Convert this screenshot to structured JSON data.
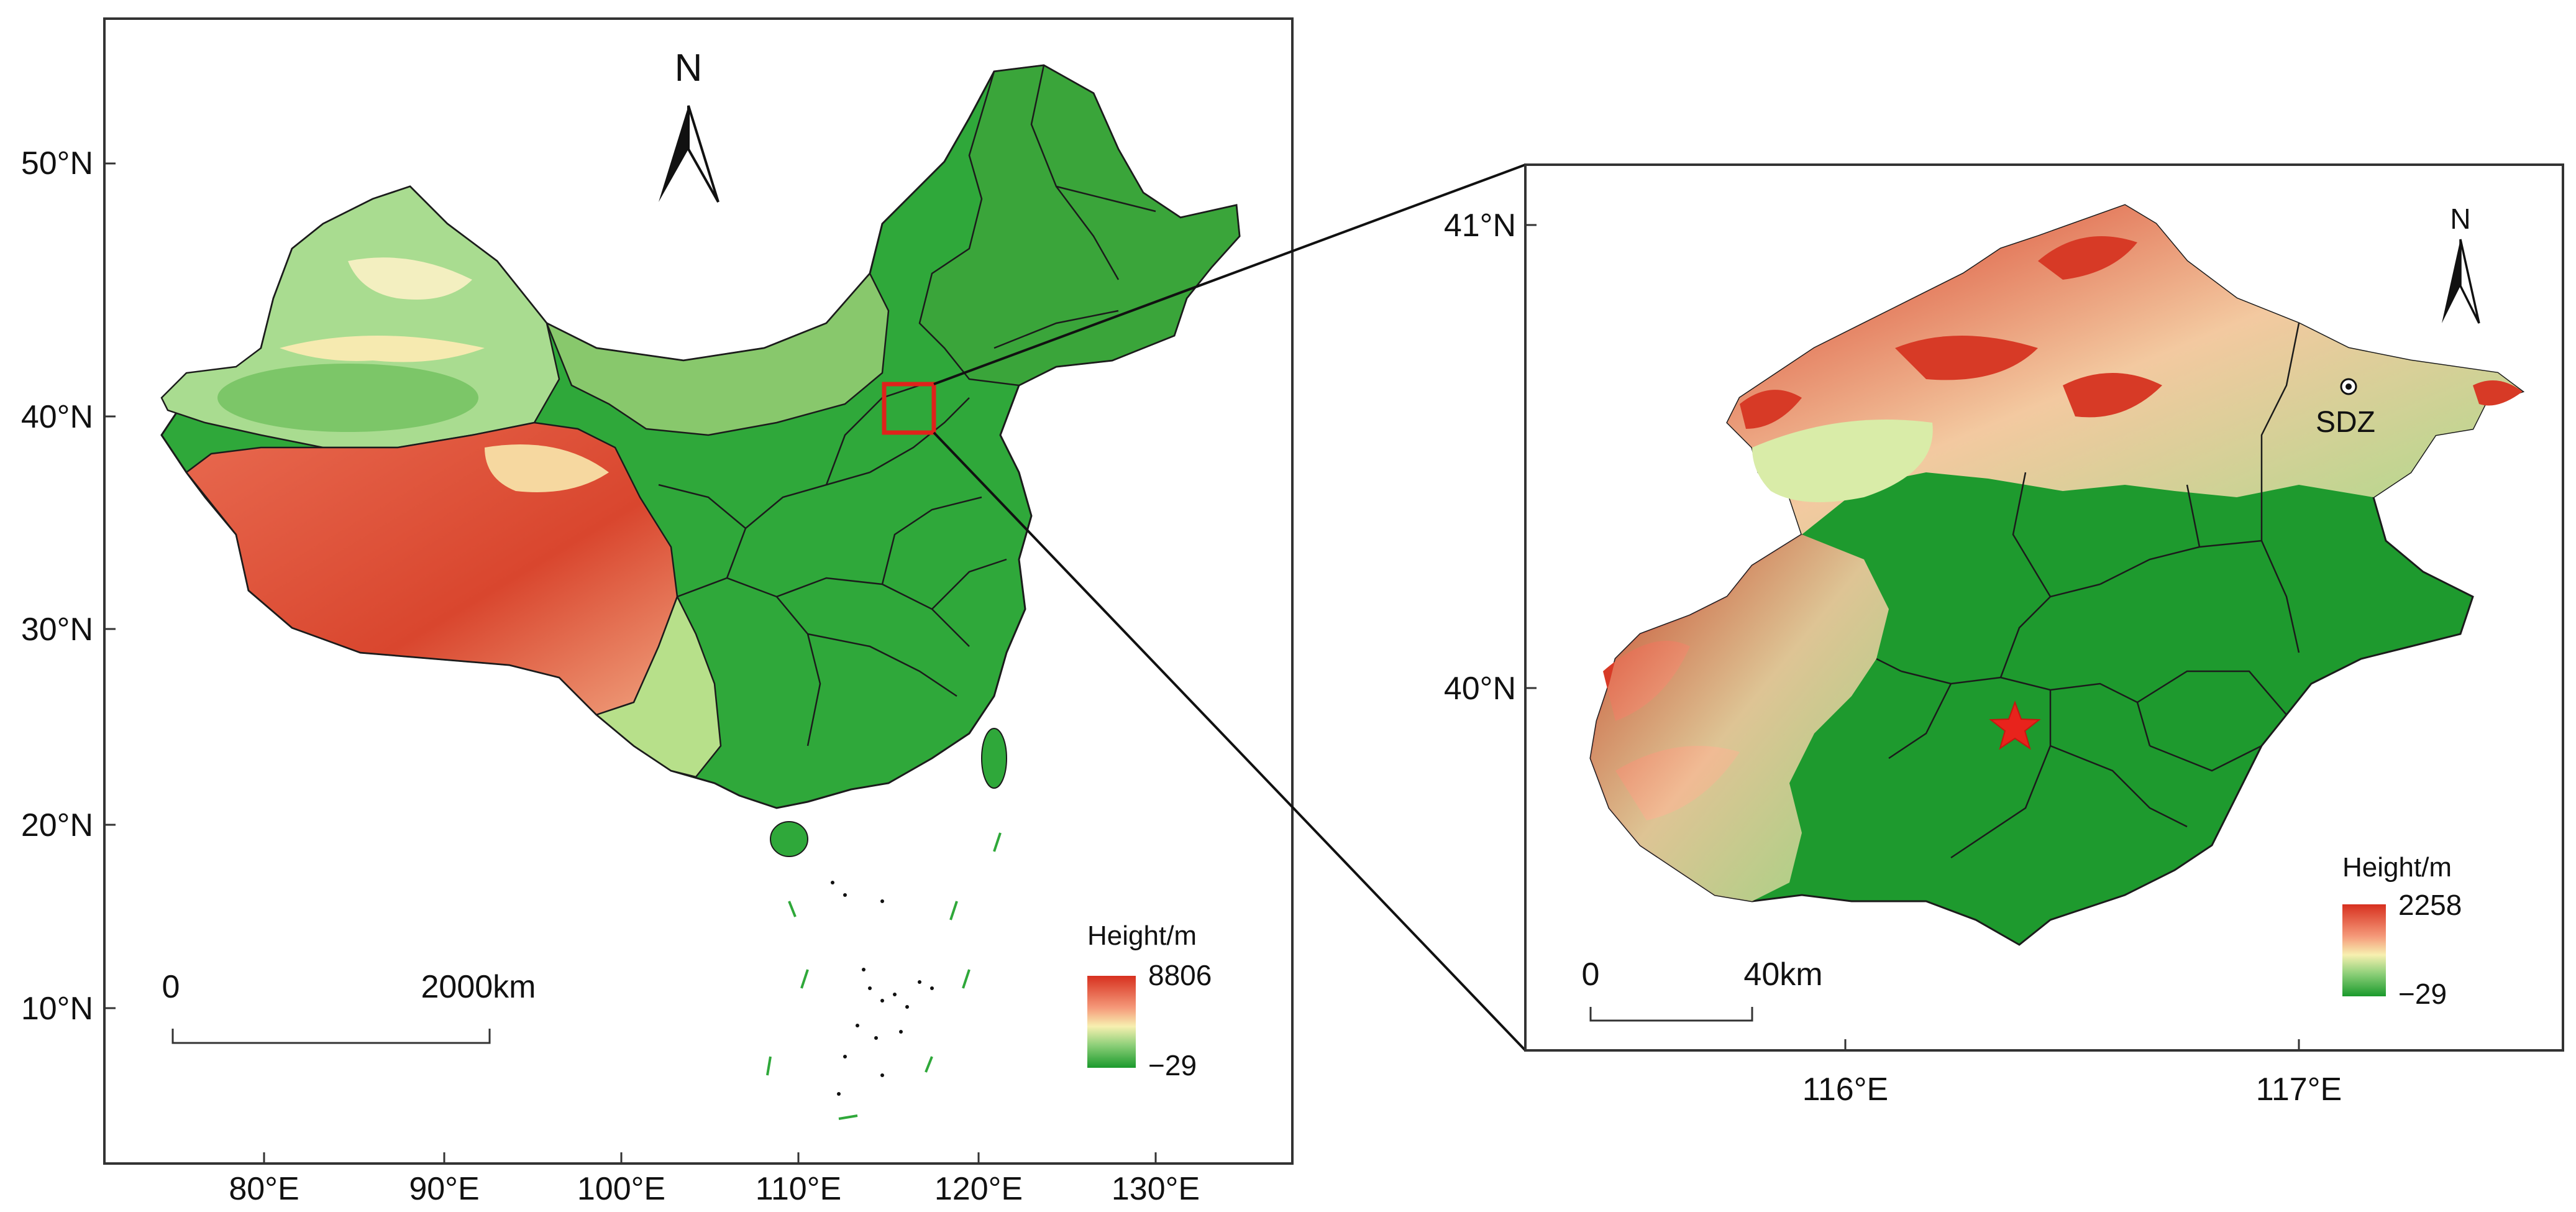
{
  "left_map": {
    "north_label": "N",
    "lat_labels": [
      "50°N",
      "40°N",
      "30°N",
      "20°N",
      "10°N"
    ],
    "lon_labels": [
      "80°E",
      "90°E",
      "100°E",
      "110°E",
      "120°E",
      "130°E"
    ],
    "scale_start": "0",
    "scale_end": "2000km",
    "legend": {
      "title": "Height/m",
      "max": "8806",
      "min": "−29"
    }
  },
  "right_map": {
    "north_label": "N",
    "lat_labels": [
      "41°N",
      "40°N"
    ],
    "lon_labels": [
      "116°E",
      "117°E"
    ],
    "scale_start": "0",
    "scale_end": "40km",
    "station_label": "SDZ",
    "legend": {
      "title": "Height/m",
      "max": "2258",
      "min": "−29"
    }
  },
  "colors": {
    "high": "#d7301f",
    "mid": "#f7f0b0",
    "low": "#1a9a2c",
    "highlight_box": "#e0221b",
    "star": "#e8231c"
  },
  "icons": [
    "north-arrow-icon",
    "star-icon",
    "station-marker-icon"
  ]
}
